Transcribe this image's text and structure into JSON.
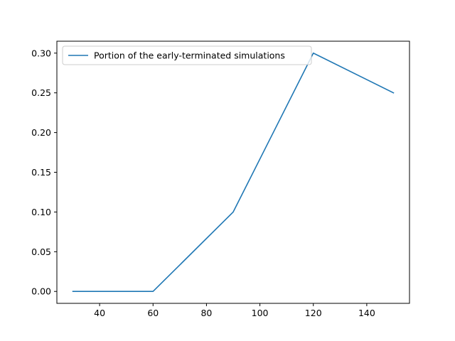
{
  "chart_data": {
    "type": "line",
    "title": "",
    "xlabel": "",
    "ylabel": "",
    "xlim": [
      24,
      156
    ],
    "ylim": [
      -0.015,
      0.315
    ],
    "x_ticks": [
      40,
      60,
      80,
      100,
      120,
      140
    ],
    "x_tick_labels": [
      "40",
      "60",
      "80",
      "100",
      "120",
      "140"
    ],
    "y_ticks": [
      0.0,
      0.05,
      0.1,
      0.15,
      0.2,
      0.25,
      0.3
    ],
    "y_tick_labels": [
      "0.00",
      "0.05",
      "0.10",
      "0.15",
      "0.20",
      "0.25",
      "0.30"
    ],
    "grid": false,
    "legend_position": "upper-left",
    "series": [
      {
        "name": "Portion of the early-terminated simulations",
        "color": "#1f77b4",
        "x": [
          30,
          60,
          90,
          120,
          150
        ],
        "y": [
          0.0,
          0.0,
          0.1,
          0.3,
          0.25
        ]
      }
    ]
  }
}
